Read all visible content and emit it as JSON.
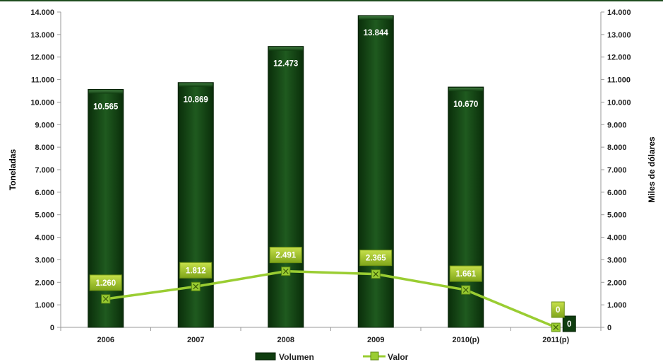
{
  "chart_data": {
    "type": "bar",
    "categories": [
      "2006",
      "2007",
      "2008",
      "2009",
      "2010(p)",
      "2011(p)"
    ],
    "series": [
      {
        "name": "Volumen",
        "type": "bar",
        "axis": "left",
        "values": [
          10565,
          10869,
          12473,
          13844,
          10670,
          0
        ],
        "labels": [
          "10.565",
          "10.869",
          "12.473",
          "13.844",
          "10.670",
          "0"
        ],
        "color": "#0f3d0f"
      },
      {
        "name": "Valor",
        "type": "line",
        "axis": "right",
        "values": [
          1260,
          1812,
          2491,
          2365,
          1661,
          0
        ],
        "labels": [
          "1.260",
          "1.812",
          "2.491",
          "2.365",
          "1.661",
          "0"
        ],
        "color": "#9acd32"
      }
    ],
    "ylabel_left": "Toneladas",
    "ylabel_right": "Miles de dólares",
    "ylim_left": [
      0,
      14000
    ],
    "ylim_right": [
      0,
      14000
    ],
    "yticks": [
      "0",
      "1.000",
      "2.000",
      "3.000",
      "4.000",
      "5.000",
      "6.000",
      "7.000",
      "8.000",
      "9.000",
      "10.000",
      "11.000",
      "12.000",
      "13.000",
      "14.000"
    ],
    "grid": false,
    "legend_position": "bottom"
  }
}
